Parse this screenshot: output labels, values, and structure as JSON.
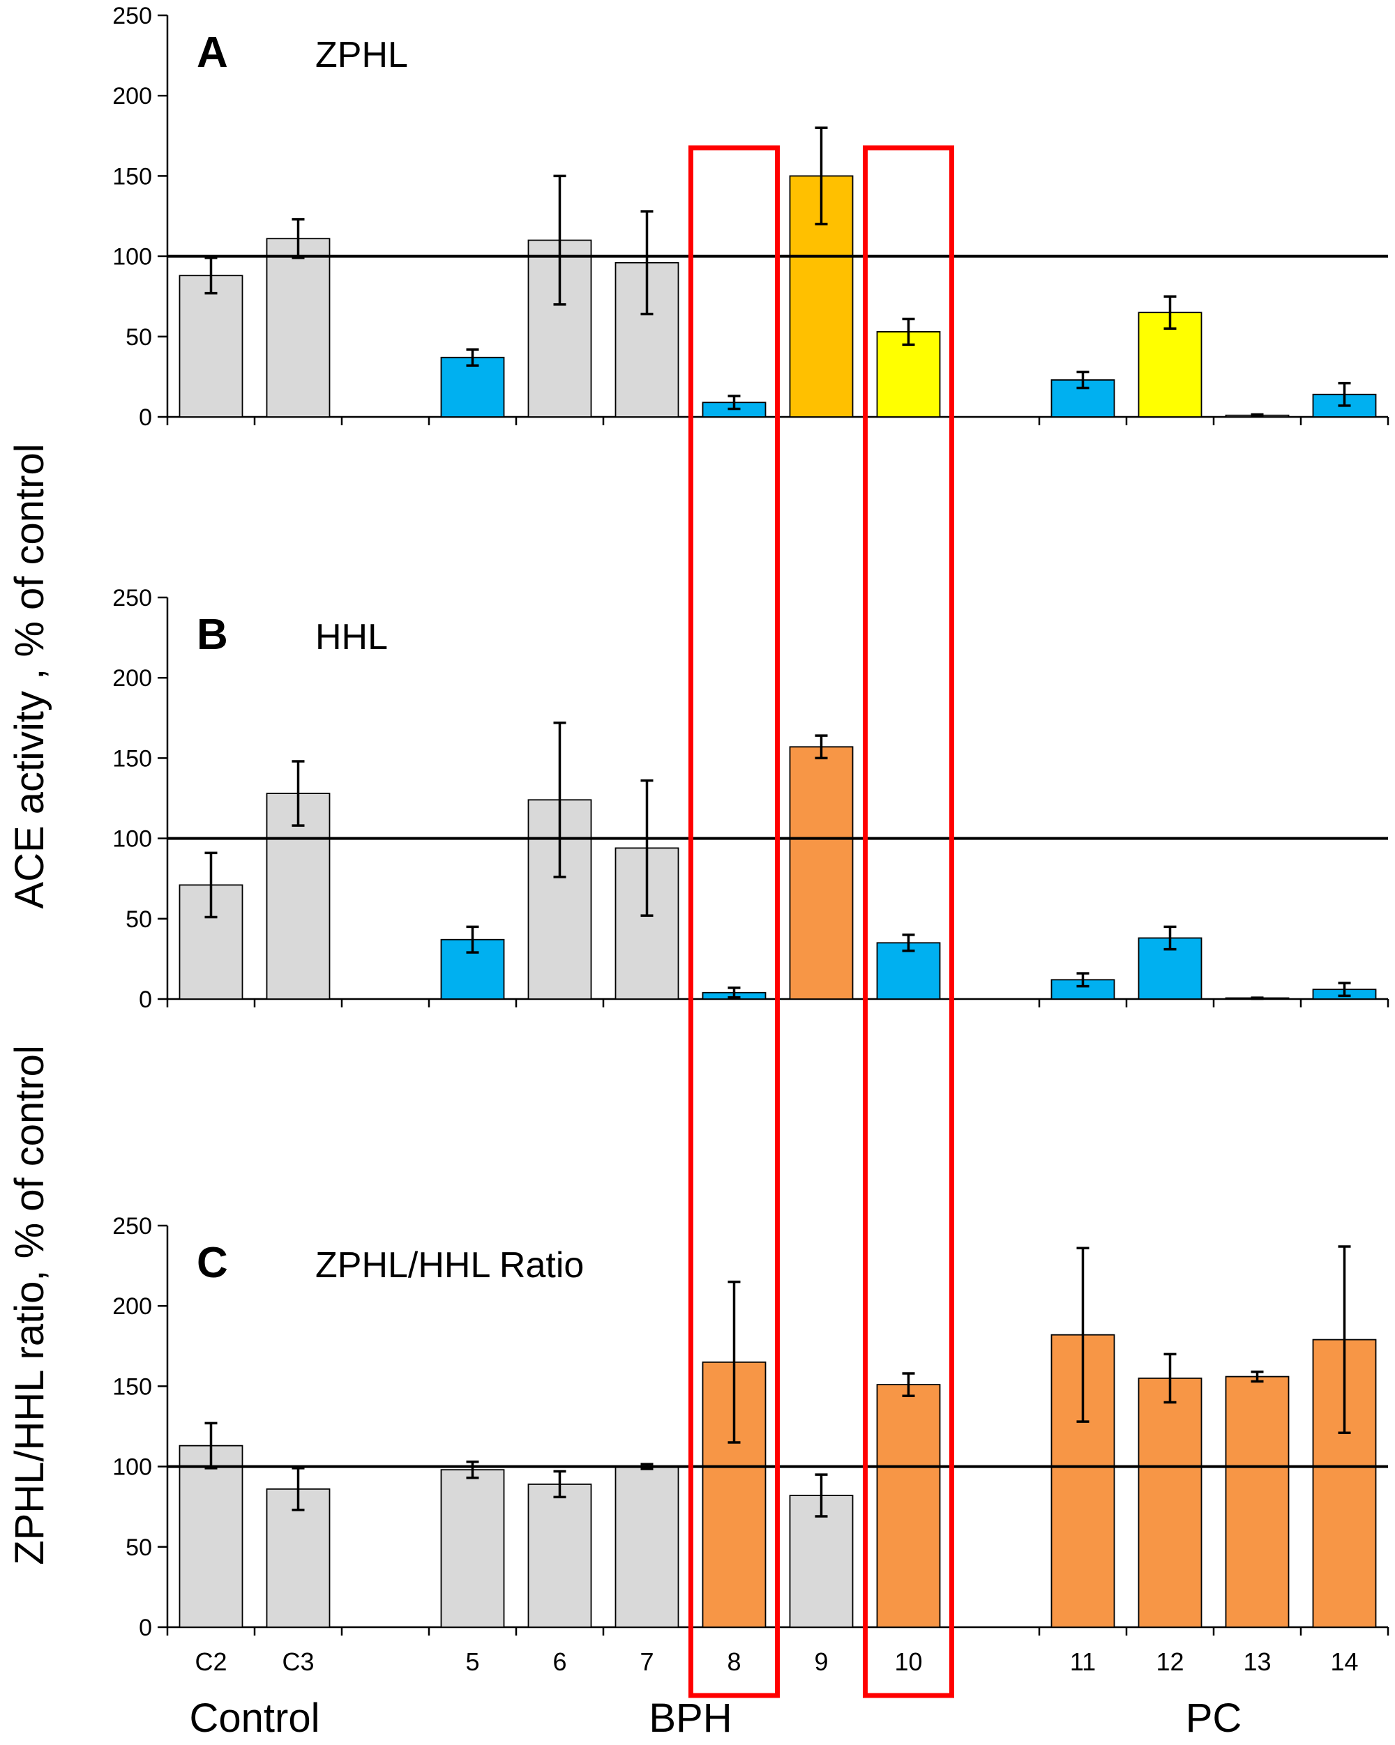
{
  "figure": {
    "y_label_top": "ACE activity , % of control",
    "y_label_bottom": "ZPHL/HHL ratio, % of control"
  },
  "chart_data": [
    {
      "type": "bar",
      "letter": "A",
      "title": "ZPHL",
      "ylim": [
        0,
        250
      ],
      "yticks": [
        0,
        50,
        100,
        150,
        200,
        250
      ],
      "reference_line": 100,
      "categories": [
        "C2",
        "C3",
        "",
        "5",
        "6",
        "7",
        "8",
        "9",
        "10",
        "",
        "11",
        "12",
        "13",
        "14"
      ],
      "values": [
        88,
        111,
        null,
        37,
        110,
        96,
        9,
        150,
        53,
        null,
        23,
        65,
        1,
        14
      ],
      "errors": [
        11,
        12,
        null,
        5,
        40,
        32,
        4,
        30,
        8,
        null,
        5,
        10,
        0.5,
        7
      ],
      "colors": [
        "#d9d9d9",
        "#d9d9d9",
        null,
        "#00b0f0",
        "#d9d9d9",
        "#d9d9d9",
        "#00b0f0",
        "#ffc000",
        "#ffff00",
        null,
        "#00b0f0",
        "#ffff00",
        "#d9d9d9",
        "#00b0f0"
      ]
    },
    {
      "type": "bar",
      "letter": "B",
      "title": "HHL",
      "ylim": [
        0,
        250
      ],
      "yticks": [
        0,
        50,
        100,
        150,
        200,
        250
      ],
      "reference_line": 100,
      "categories": [
        "C2",
        "C3",
        "",
        "5",
        "6",
        "7",
        "8",
        "9",
        "10",
        "",
        "11",
        "12",
        "13",
        "14"
      ],
      "values": [
        71,
        128,
        null,
        37,
        124,
        94,
        4,
        157,
        35,
        null,
        12,
        38,
        0.5,
        6
      ],
      "errors": [
        20,
        20,
        null,
        8,
        48,
        42,
        3,
        7,
        5,
        null,
        4,
        7,
        0.3,
        4
      ],
      "colors": [
        "#d9d9d9",
        "#d9d9d9",
        null,
        "#00b0f0",
        "#d9d9d9",
        "#d9d9d9",
        "#00b0f0",
        "#f79646",
        "#00b0f0",
        null,
        "#00b0f0",
        "#00b0f0",
        "#d9d9d9",
        "#00b0f0"
      ]
    },
    {
      "type": "bar",
      "letter": "C",
      "title": "ZPHL/HHL Ratio",
      "ylim": [
        0,
        250
      ],
      "yticks": [
        0,
        50,
        100,
        150,
        200,
        250
      ],
      "reference_line": 100,
      "categories": [
        "C2",
        "C3",
        "",
        "5",
        "6",
        "7",
        "8",
        "9",
        "10",
        "",
        "11",
        "12",
        "13",
        "14"
      ],
      "values": [
        113,
        86,
        null,
        98,
        89,
        100,
        165,
        82,
        151,
        null,
        182,
        155,
        156,
        179
      ],
      "errors": [
        14,
        13,
        null,
        5,
        8,
        1.5,
        50,
        13,
        7,
        null,
        54,
        15,
        3,
        58
      ],
      "colors": [
        "#d9d9d9",
        "#d9d9d9",
        null,
        "#d9d9d9",
        "#d9d9d9",
        "#d9d9d9",
        "#f79646",
        "#d9d9d9",
        "#f79646",
        null,
        "#f79646",
        "#f79646",
        "#f79646",
        "#f79646"
      ]
    }
  ],
  "x_groups": [
    {
      "label": "Control",
      "from": 0,
      "to": 1
    },
    {
      "label": "BPH",
      "from": 3,
      "to": 8
    },
    {
      "label": "PC",
      "from": 10,
      "to": 13
    }
  ],
  "highlight_columns": [
    6,
    8
  ],
  "highlight_color": "#ff0000"
}
